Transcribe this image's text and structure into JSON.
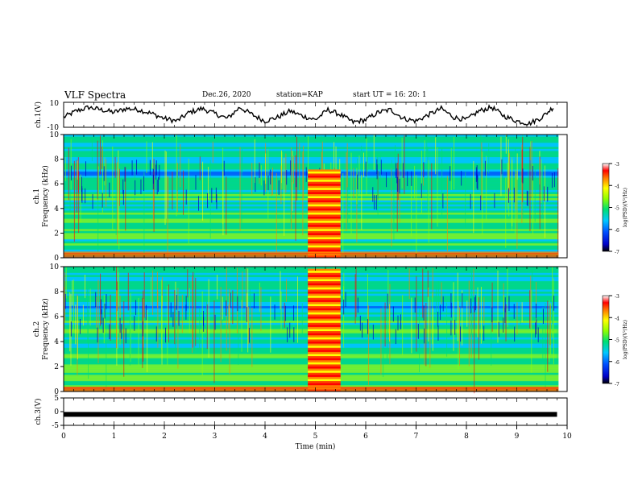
{
  "header": {
    "title": "VLF Spectra",
    "date": "Dec.26, 2020",
    "station": "station=KAP",
    "start": "start  UT =   16: 20: 1"
  },
  "chart_data": [
    {
      "type": "line",
      "ylabel": "ch.1(V)",
      "ylim": [
        -10,
        10
      ],
      "ytick_labels": [
        "10",
        "-10"
      ],
      "xlim": [
        0,
        10
      ],
      "x": [
        0,
        0.25,
        0.5,
        0.75,
        1,
        1.25,
        1.5,
        1.75,
        2,
        2.25,
        2.5,
        2.75,
        3,
        3.25,
        3.5,
        3.75,
        4,
        4.25,
        4.5,
        4.75,
        5,
        5.25,
        5.5,
        5.75,
        6,
        6.25,
        6.5,
        6.75,
        7,
        7.25,
        7.5,
        7.75,
        8,
        8.25,
        8.5,
        8.75,
        9,
        9.25,
        9.5,
        9.75
      ],
      "values": [
        -2,
        3,
        6,
        4,
        2,
        5,
        4,
        1,
        -3,
        -5,
        2,
        5,
        1,
        -3,
        6,
        0,
        -5,
        -2,
        3,
        -1,
        -4,
        4,
        0,
        -6,
        -4,
        2,
        4,
        -3,
        -5,
        0,
        5,
        -2,
        -4,
        3,
        6,
        -1,
        -5,
        -7,
        -2,
        7
      ]
    },
    {
      "type": "heatmap",
      "ylabel": "ch.1\nFrequency (kHz)",
      "xlim": [
        0,
        10
      ],
      "ylim": [
        0,
        10
      ],
      "ytick_labels": [
        "0",
        "2",
        "4",
        "6",
        "8",
        "10"
      ],
      "colorbar": {
        "label": "log(PSD)(V²/Hz)",
        "range": [
          -7,
          -3
        ],
        "tick_labels": [
          "-3",
          "-4",
          "-5",
          "-6",
          "-7"
        ]
      }
    },
    {
      "type": "heatmap",
      "ylabel": "ch.2\nFrequency (kHz)",
      "xlim": [
        0,
        10
      ],
      "ylim": [
        0,
        10
      ],
      "ytick_labels": [
        "0",
        "2",
        "4",
        "6",
        "8",
        "10"
      ],
      "colorbar": {
        "label": "log(PSD)(V²/Hz)",
        "range": [
          -7,
          -3
        ],
        "tick_labels": [
          "-3",
          "-4",
          "-5",
          "-6",
          "-7"
        ]
      }
    },
    {
      "type": "line",
      "ylabel": "ch.3(V)",
      "ylim": [
        -5,
        5
      ],
      "ytick_labels": [
        "5",
        "0",
        "-5"
      ],
      "xlim": [
        0,
        10
      ],
      "x": [
        0,
        9.8
      ],
      "values": [
        -1,
        -1
      ],
      "xlabel": "Time (min)",
      "xtick_labels": [
        "0",
        "1",
        "2",
        "3",
        "4",
        "5",
        "6",
        "7",
        "8",
        "9",
        "10"
      ]
    }
  ],
  "colors": {
    "line": "#000000",
    "frame": "#000000"
  }
}
